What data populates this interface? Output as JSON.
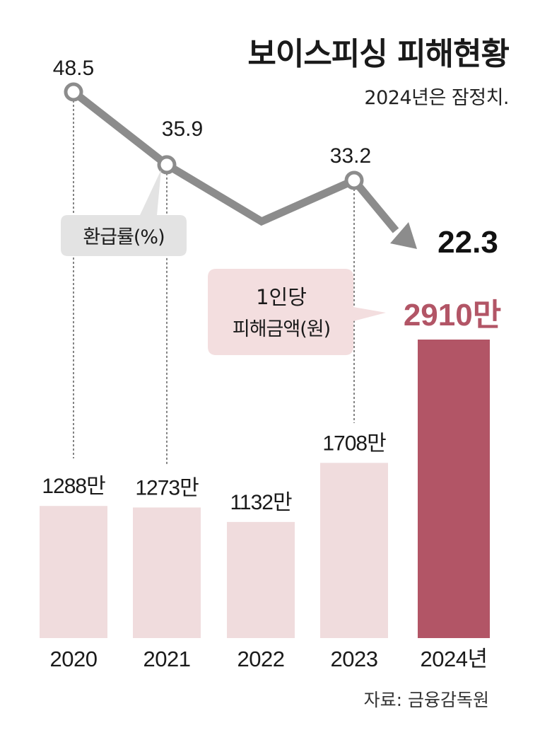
{
  "title": "보이스피싱 피해현황",
  "subtitle": "2024년은 잠정치.",
  "source": "자료: 금융감독원",
  "colors": {
    "bar_default": "#f0dcdd",
    "bar_highlight": "#b25566",
    "line": "#8c8c8c",
    "bubble_gray": "#e3e3e3",
    "bubble_pink": "#f3dedf",
    "highlight_text": "#b25566"
  },
  "chart_data": {
    "type": "bar",
    "categories": [
      "2020",
      "2021",
      "2022",
      "2023",
      "2024년"
    ],
    "series": [
      {
        "name": "1인당 피해금액(원)",
        "values": [
          1288,
          1273,
          1132,
          1708,
          2910
        ],
        "labels": [
          "1288만",
          "1273만",
          "1132만",
          "1708만",
          "2910만"
        ],
        "unit": "만"
      },
      {
        "name": "환급률(%)",
        "type": "line",
        "values": [
          48.5,
          35.9,
          null,
          33.2,
          22.3
        ],
        "labels": [
          "48.5",
          "35.9",
          "",
          "33.2",
          "22.3"
        ]
      }
    ],
    "legend": {
      "line_label": "환급률(%)",
      "bar_label_line1": "1인당",
      "bar_label_line2": "피해금액(원)"
    },
    "grid": false
  }
}
